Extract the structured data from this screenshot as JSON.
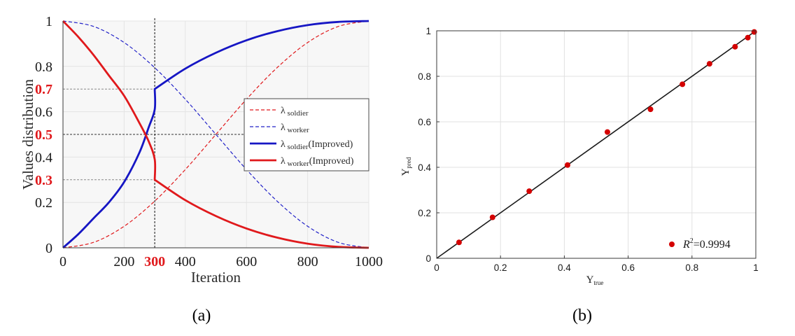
{
  "chart_data": [
    {
      "panel": "(a)",
      "type": "line",
      "xlabel": "Iteration",
      "ylabel": "Values distribution",
      "xlim": [
        0,
        1000
      ],
      "ylim": [
        0,
        1
      ],
      "x_ticks": [
        "0",
        "200",
        "300",
        "400",
        "600",
        "800",
        "1000"
      ],
      "x_tick_values": [
        0,
        200,
        300,
        400,
        600,
        800,
        1000
      ],
      "x_highlight_tick": "300",
      "y_ticks": [
        "0",
        "0.2",
        "0.3",
        "0.4",
        "0.5",
        "0.6",
        "0.7",
        "0.8",
        "1"
      ],
      "y_tick_values": [
        0,
        0.2,
        0.3,
        0.4,
        0.5,
        0.6,
        0.7,
        0.8,
        1
      ],
      "y_highlight_ticks": [
        "0.3",
        "0.5",
        "0.7"
      ],
      "grid": true,
      "legend_position": "center-right",
      "reference_lines": [
        {
          "orientation": "vertical",
          "x": 300
        },
        {
          "orientation": "horizontal",
          "y": 0.7,
          "x_to": 300
        },
        {
          "orientation": "horizontal",
          "y": 0.5,
          "x_to": 600
        },
        {
          "orientation": "horizontal",
          "y": 0.3,
          "x_to": 300
        }
      ],
      "series": [
        {
          "name": "λ soldier",
          "symbol": "λ",
          "subscript": "soldier",
          "suffix": "",
          "color": "#e0191c",
          "style": "dashed",
          "x": [
            0,
            100,
            200,
            300,
            400,
            500,
            600,
            700,
            800,
            900,
            1000
          ],
          "values": [
            0.0,
            0.024,
            0.095,
            0.206,
            0.345,
            0.5,
            0.655,
            0.794,
            0.905,
            0.976,
            1.0
          ]
        },
        {
          "name": "λ worker",
          "symbol": "λ",
          "subscript": "worker",
          "suffix": "",
          "color": "#2323c8",
          "style": "dashed",
          "x": [
            0,
            100,
            200,
            300,
            400,
            500,
            600,
            700,
            800,
            900,
            1000
          ],
          "values": [
            1.0,
            0.976,
            0.905,
            0.794,
            0.655,
            0.5,
            0.345,
            0.206,
            0.095,
            0.024,
            0.0
          ]
        },
        {
          "name": "λ soldier(Improved)",
          "symbol": "λ",
          "subscript": "soldier",
          "suffix": "(Improved)",
          "color": "#1616c4",
          "style": "solid",
          "x": [
            0,
            50,
            100,
            150,
            200,
            250,
            280,
            300,
            300,
            400,
            500,
            600,
            700,
            800,
            900,
            1000
          ],
          "values": [
            0.0,
            0.06,
            0.13,
            0.2,
            0.29,
            0.42,
            0.53,
            0.61,
            0.7,
            0.79,
            0.86,
            0.915,
            0.955,
            0.982,
            0.996,
            1.0
          ]
        },
        {
          "name": "λ worker(Improved)",
          "symbol": "λ",
          "subscript": "worker",
          "suffix": "(Improved)",
          "color": "#e0191c",
          "style": "solid",
          "x": [
            0,
            50,
            100,
            150,
            200,
            250,
            280,
            300,
            300,
            400,
            500,
            600,
            700,
            800,
            900,
            1000
          ],
          "values": [
            1.0,
            0.93,
            0.85,
            0.76,
            0.67,
            0.55,
            0.47,
            0.39,
            0.3,
            0.21,
            0.14,
            0.085,
            0.045,
            0.018,
            0.004,
            0.0
          ]
        }
      ]
    },
    {
      "panel": "(b)",
      "type": "scatter",
      "xlabel": "Y",
      "xlabel_sub": "true",
      "ylabel": "Y",
      "ylabel_sub": "pred",
      "xlim": [
        0,
        1
      ],
      "ylim": [
        0,
        1
      ],
      "x_ticks": [
        "0",
        "0.2",
        "0.4",
        "0.6",
        "0.8",
        "1"
      ],
      "x_tick_values": [
        0,
        0.2,
        0.4,
        0.6,
        0.8,
        1
      ],
      "y_ticks": [
        "0",
        "0.2",
        "0.4",
        "0.6",
        "0.8",
        "1"
      ],
      "y_tick_values": [
        0,
        0.2,
        0.4,
        0.6,
        0.8,
        1
      ],
      "grid": true,
      "legend_position": "bottom-right",
      "legend_label": "=0.9994",
      "legend_symbol": "R",
      "legend_sup": "2",
      "fit_line": {
        "x": [
          0,
          1
        ],
        "y": [
          0,
          1
        ],
        "color": "#1a1a1a"
      },
      "series": [
        {
          "color": "#d40000",
          "x": [
            0.07,
            0.175,
            0.29,
            0.41,
            0.535,
            0.67,
            0.77,
            0.855,
            0.935,
            0.975,
            0.995
          ],
          "y": [
            0.07,
            0.18,
            0.295,
            0.41,
            0.555,
            0.655,
            0.765,
            0.855,
            0.93,
            0.97,
            0.995
          ]
        }
      ]
    }
  ],
  "captions": {
    "a": "(a)",
    "b": "(b)"
  },
  "colors": {
    "highlight": "#e0191c",
    "grid": "#e3e3e3",
    "axis": "#3a3a3a"
  }
}
